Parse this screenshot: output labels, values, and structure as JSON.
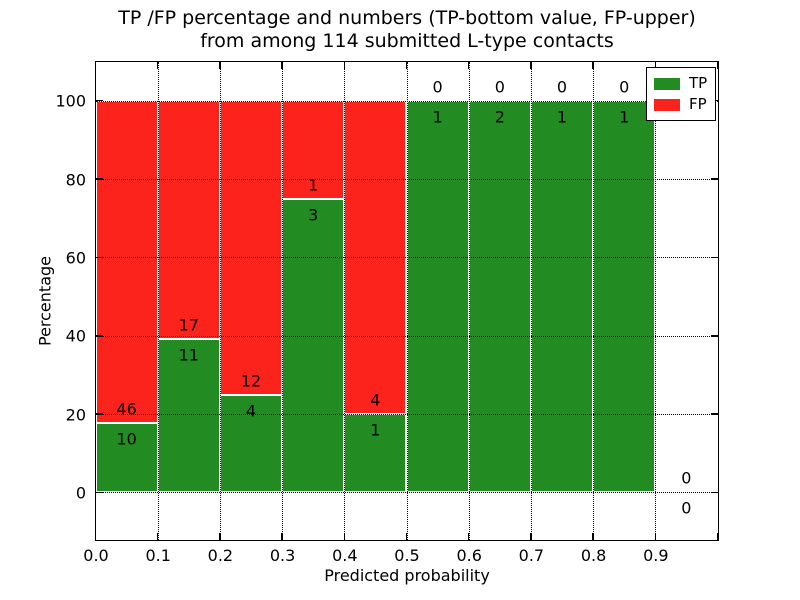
{
  "title": {
    "line1": "TP /FP percentage and numbers (TP-bottom value, FP-upper)",
    "line2": "from among 114 submitted L-type contacts"
  },
  "axes": {
    "xlabel": "Predicted probability",
    "ylabel": "Percentage",
    "xtick_labels": [
      "0.0",
      "0.1",
      "0.2",
      "0.3",
      "0.4",
      "0.5",
      "0.6",
      "0.7",
      "0.8",
      "0.9"
    ],
    "ytick_labels": [
      "0",
      "20",
      "40",
      "60",
      "80",
      "100"
    ]
  },
  "legend": {
    "position": "upper right",
    "items": [
      {
        "label": "TP",
        "color": "#228b22"
      },
      {
        "label": "FP",
        "color": "#fb231c"
      }
    ]
  },
  "colors": {
    "tp": "#228b22",
    "fp": "#fb231c",
    "grid": "#000000",
    "bar_edge": "#ffffff",
    "background": "#ffffff",
    "text": "#000000"
  },
  "chart_data": {
    "type": "bar",
    "stacked": true,
    "unit": "percent_of_bin",
    "title": "TP /FP percentage and numbers (TP-bottom value, FP-upper) from among 114 submitted L-type contacts",
    "xlabel": "Predicted probability",
    "ylabel": "Percentage",
    "total_contacts": 114,
    "bin_width": 0.1,
    "categories": [
      "0.0-0.1",
      "0.1-0.2",
      "0.2-0.3",
      "0.3-0.4",
      "0.4-0.5",
      "0.5-0.6",
      "0.6-0.7",
      "0.7-0.8",
      "0.8-0.9",
      "0.9-1.0"
    ],
    "series": [
      {
        "name": "TP",
        "color": "#228b22",
        "values": [
          10,
          11,
          4,
          3,
          1,
          1,
          2,
          1,
          1,
          0
        ]
      },
      {
        "name": "FP",
        "color": "#fb231c",
        "values": [
          46,
          17,
          12,
          1,
          4,
          0,
          0,
          0,
          0,
          0
        ]
      }
    ],
    "tp_percent": [
      17.86,
      39.29,
      25.0,
      75.0,
      20.0,
      100.0,
      100.0,
      100.0,
      100.0,
      0.0
    ],
    "bins": [
      {
        "range": [
          0.0,
          0.1
        ],
        "tp": 10,
        "fp": 46
      },
      {
        "range": [
          0.1,
          0.2
        ],
        "tp": 11,
        "fp": 17
      },
      {
        "range": [
          0.2,
          0.3
        ],
        "tp": 4,
        "fp": 12
      },
      {
        "range": [
          0.3,
          0.4
        ],
        "tp": 3,
        "fp": 1
      },
      {
        "range": [
          0.4,
          0.5
        ],
        "tp": 1,
        "fp": 4
      },
      {
        "range": [
          0.5,
          0.6
        ],
        "tp": 1,
        "fp": 0
      },
      {
        "range": [
          0.6,
          0.7
        ],
        "tp": 2,
        "fp": 0
      },
      {
        "range": [
          0.7,
          0.8
        ],
        "tp": 1,
        "fp": 0
      },
      {
        "range": [
          0.8,
          0.9
        ],
        "tp": 1,
        "fp": 0
      },
      {
        "range": [
          0.9,
          1.0
        ],
        "tp": 0,
        "fp": 0
      }
    ],
    "xticks": [
      0.0,
      0.1,
      0.2,
      0.3,
      0.4,
      0.5,
      0.6,
      0.7,
      0.8,
      0.9
    ],
    "yticks": [
      0,
      20,
      40,
      60,
      80,
      100
    ],
    "xlim": [
      0.0,
      1.0
    ],
    "ylim": [
      -12,
      110
    ],
    "grid": "dotted",
    "legend_position": "upper right"
  }
}
